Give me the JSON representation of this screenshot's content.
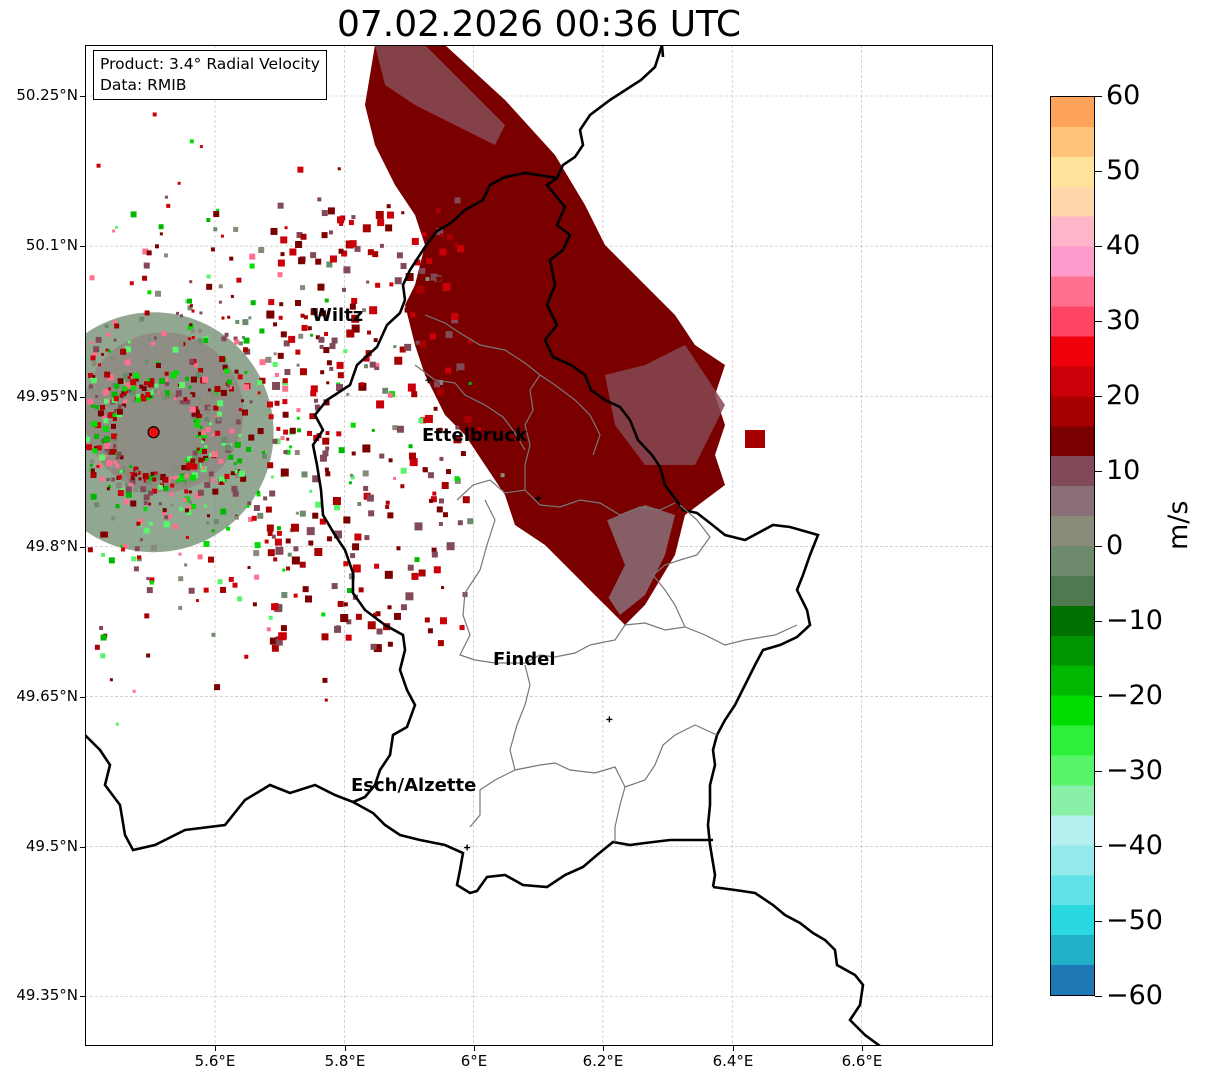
{
  "title": "07.02.2026 00:36 UTC",
  "info": {
    "product": "Product: 3.4° Radial Velocity",
    "data": "Data: RMIB"
  },
  "map": {
    "lat_ticks": [
      "50.25°N",
      "50.1°N",
      "49.95°N",
      "49.8°N",
      "49.65°N",
      "49.5°N",
      "49.35°N"
    ],
    "lon_ticks": [
      "5.6°E",
      "5.8°E",
      "6°E",
      "6.2°E",
      "6.4°E",
      "6.6°E"
    ],
    "radar_site": {
      "lon": 5.505,
      "lat": 49.914,
      "marker_color": "#e8100c"
    },
    "cities": [
      {
        "name": "Wiltz",
        "lon": 5.93,
        "lat": 49.966
      },
      {
        "name": "Ettelbruck",
        "lon": 6.1,
        "lat": 49.848
      },
      {
        "name": "Findel",
        "lon": 6.21,
        "lat": 49.627
      },
      {
        "name": "Esch/Alzette",
        "lon": 5.99,
        "lat": 49.499
      }
    ]
  },
  "colorbar": {
    "unit": "m/s",
    "ticks": [
      "60",
      "50",
      "40",
      "30",
      "20",
      "10",
      "0",
      "−10",
      "−20",
      "−30",
      "−40",
      "−50",
      "−60"
    ],
    "range": [
      -60,
      60
    ],
    "colors_bottom_to_top": [
      "#1f77b4",
      "#22b0c8",
      "#2ad9e0",
      "#5fe3e6",
      "#94e9ea",
      "#b5efef",
      "#8af0a8",
      "#58f56a",
      "#2cf03a",
      "#00dd00",
      "#00b800",
      "#009400",
      "#007000",
      "#4f7a4f",
      "#6d8a6d",
      "#8a8a7a",
      "#8a6f78",
      "#824a58",
      "#7a0000",
      "#a80000",
      "#cc0008",
      "#f0000a",
      "#ff4466",
      "#ff6f90",
      "#ff9acc",
      "#ffb6c8",
      "#ffd7a8",
      "#ffe39a",
      "#ffc47a",
      "#ffa35a"
    ]
  }
}
